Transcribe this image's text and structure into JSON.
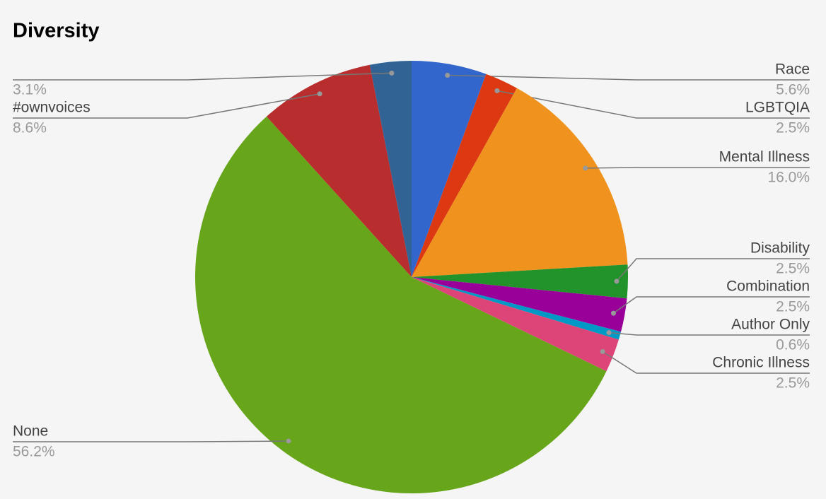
{
  "chart_data": {
    "type": "pie",
    "title": "Diversity",
    "categories": [
      "Race",
      "LGBTQIA",
      "Mental Illness",
      "Disability",
      "Combination",
      "Author Only",
      "Chronic Illness",
      "None",
      "#ownvoices",
      null
    ],
    "values": [
      5.6,
      2.5,
      16.0,
      2.5,
      2.5,
      0.6,
      2.5,
      56.2,
      8.6,
      3.1
    ],
    "value_labels": [
      "5.6%",
      "2.5%",
      "16.0%",
      "2.5%",
      "2.5%",
      "0.6%",
      "2.5%",
      "56.2%",
      "8.6%",
      "3.1%"
    ],
    "colors": [
      "#3366cc",
      "#dc3912",
      "#f0931e",
      "#22922b",
      "#990099",
      "#0099c6",
      "#dd4477",
      "#67a51a",
      "#b82e2e",
      "#316395"
    ]
  }
}
